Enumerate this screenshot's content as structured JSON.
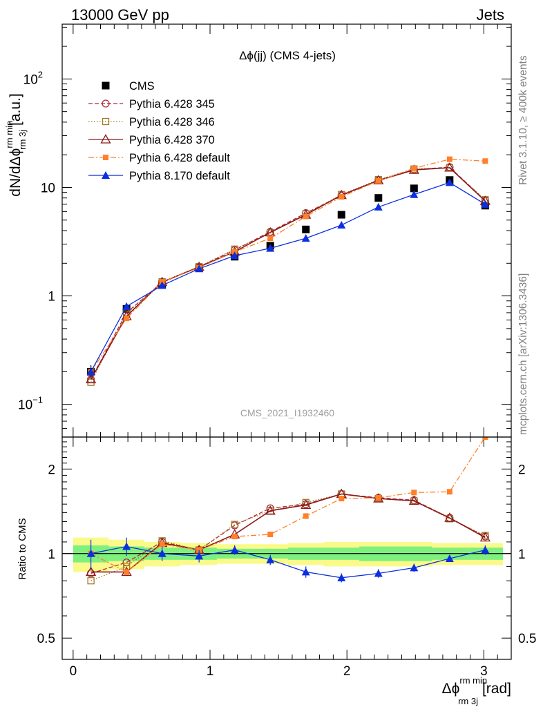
{
  "header": {
    "energy_label": "13000 GeV pp",
    "process_label": "Jets"
  },
  "side_text": {
    "rivet": "Rivet 3.1.10, ≥ 400k events",
    "mcplots": "mcplots.cern.ch [arXiv:1306.3436]"
  },
  "colors": {
    "cms": "#000000",
    "p345": "#b02a3a",
    "p346": "#a07a2a",
    "p370": "#8b1a1a",
    "p6def": "#ff7f2a",
    "p8def": "#0b2fe0",
    "band_inner": "#7ef07e",
    "band_outer": "#fafa8a"
  },
  "chart_data": [
    {
      "type": "line",
      "title": "Δϕ(jj) (CMS 4-jets)",
      "analysis_tag": "CMS_2021_I1932460",
      "ylabel": "dN/dΔϕ^rm min_rm 3j [a.u.]",
      "ylabel_main": "dN/dΔϕ",
      "ylabel_sup": "rm min",
      "ylabel_sub": "rm 3j",
      "ylabel_unit": "[a.u.]",
      "yscale": "log",
      "ylim": [
        0.05,
        320
      ],
      "xlim": [
        -0.08,
        3.2
      ],
      "y_ticks": [
        {
          "value": 0.1,
          "label": "10",
          "sup": "−1"
        },
        {
          "value": 1,
          "label": "1",
          "sup": ""
        },
        {
          "value": 10,
          "label": "10",
          "sup": ""
        },
        {
          "value": 100,
          "label": "10",
          "sup": "2"
        }
      ],
      "legend_position": "top-left",
      "x": [
        0.13,
        0.39,
        0.65,
        0.92,
        1.18,
        1.44,
        1.7,
        1.96,
        2.23,
        2.49,
        2.75,
        3.01
      ],
      "series": [
        {
          "name": "CMS",
          "key": "cms",
          "style": "marker",
          "values": [
            0.2,
            0.76,
            1.28,
            1.8,
            2.3,
            2.9,
            4.1,
            5.6,
            8.0,
            9.8,
            11.7,
            6.8
          ],
          "errors": [
            0.03,
            0.06,
            0.06,
            0.07,
            0.08,
            0.09,
            0.12,
            0.15,
            0.2,
            0.25,
            0.3,
            0.2
          ]
        },
        {
          "name": "Pythia 6.428 345",
          "key": "p345",
          "style": "dash",
          "values": [
            0.17,
            0.7,
            1.33,
            1.85,
            2.65,
            3.9,
            5.8,
            8.4,
            11.7,
            14.6,
            15.4,
            7.6
          ]
        },
        {
          "name": "Pythia 6.428 346",
          "key": "p346",
          "style": "dot",
          "values": [
            0.16,
            0.68,
            1.35,
            1.86,
            2.7,
            3.8,
            5.7,
            8.6,
            11.8,
            14.8,
            15.2,
            7.7
          ]
        },
        {
          "name": "Pythia 6.428 370",
          "key": "p370",
          "style": "solid",
          "values": [
            0.17,
            0.65,
            1.34,
            1.85,
            2.55,
            3.85,
            5.6,
            8.5,
            11.6,
            14.5,
            15.2,
            7.5
          ]
        },
        {
          "name": "Pythia 6.428 default",
          "key": "p6def",
          "style": "dashdot",
          "values": [
            0.2,
            0.62,
            1.35,
            1.82,
            2.55,
            3.4,
            5.4,
            8.2,
            11.5,
            15.0,
            18.2,
            17.5
          ]
        },
        {
          "name": "Pythia 8.170 default",
          "key": "p8def",
          "style": "solid",
          "values": [
            0.2,
            0.8,
            1.25,
            1.78,
            2.35,
            2.75,
            3.4,
            4.5,
            6.6,
            8.6,
            11.1,
            7.0
          ],
          "errors": [
            0.02,
            0.05,
            0.04,
            0.05,
            0.06,
            0.06,
            0.08,
            0.1,
            0.14,
            0.18,
            0.22,
            0.2
          ]
        }
      ]
    },
    {
      "type": "line",
      "ylabel": "Ratio to CMS",
      "xlabel": "Δϕ^rm min_rm 3j [rad]",
      "xlabel_main": "Δϕ",
      "xlabel_sup": "rm min",
      "xlabel_sub": "rm 3j",
      "xlabel_unit": "[rad]",
      "yscale": "log",
      "ylim": [
        0.42,
        2.6
      ],
      "xlim": [
        -0.08,
        3.2
      ],
      "x_ticks": [
        0,
        1,
        2,
        3
      ],
      "y_ticks": [
        0.5,
        1,
        2
      ],
      "x": [
        0.13,
        0.39,
        0.65,
        0.92,
        1.18,
        1.44,
        1.7,
        1.96,
        2.23,
        2.49,
        2.75,
        3.01
      ],
      "bin_edges": [
        0.0,
        0.26,
        0.52,
        0.78,
        1.05,
        1.31,
        1.57,
        1.83,
        2.09,
        2.36,
        2.62,
        2.88,
        3.14
      ],
      "band_inner": [
        0.07,
        0.06,
        0.05,
        0.05,
        0.04,
        0.04,
        0.05,
        0.05,
        0.06,
        0.06,
        0.05,
        0.05
      ],
      "band_outer": [
        0.14,
        0.12,
        0.1,
        0.09,
        0.08,
        0.08,
        0.09,
        0.1,
        0.1,
        0.1,
        0.09,
        0.09
      ],
      "series": [
        {
          "name": "Pythia 6.428 345",
          "key": "p345",
          "style": "dash",
          "values": [
            0.85,
            0.93,
            1.1,
            1.03,
            1.26,
            1.45,
            1.5,
            1.63,
            1.58,
            1.55,
            1.34,
            1.15
          ]
        },
        {
          "name": "Pythia 6.428 346",
          "key": "p346",
          "style": "dot",
          "values": [
            0.8,
            0.9,
            1.11,
            1.03,
            1.27,
            1.42,
            1.52,
            1.63,
            1.57,
            1.54,
            1.33,
            1.16
          ]
        },
        {
          "name": "Pythia 6.428 370",
          "key": "p370",
          "style": "solid",
          "values": [
            0.86,
            0.86,
            1.09,
            1.03,
            1.17,
            1.42,
            1.49,
            1.63,
            1.57,
            1.54,
            1.34,
            1.14
          ]
        },
        {
          "name": "Pythia 6.428 default",
          "key": "p6def",
          "style": "dashdot",
          "values": [
            1.0,
            0.86,
            1.08,
            1.03,
            1.15,
            1.17,
            1.36,
            1.57,
            1.58,
            1.65,
            1.66,
            2.6
          ]
        },
        {
          "name": "Pythia 8.170 default",
          "key": "p8def",
          "style": "solid",
          "values": [
            1.0,
            1.06,
            1.0,
            0.98,
            1.03,
            0.95,
            0.86,
            0.82,
            0.85,
            0.89,
            0.96,
            1.03
          ],
          "errors": [
            0.12,
            0.08,
            0.06,
            0.05,
            0.04,
            0.04,
            0.04,
            0.03,
            0.03,
            0.03,
            0.02,
            0.04
          ]
        }
      ]
    }
  ]
}
